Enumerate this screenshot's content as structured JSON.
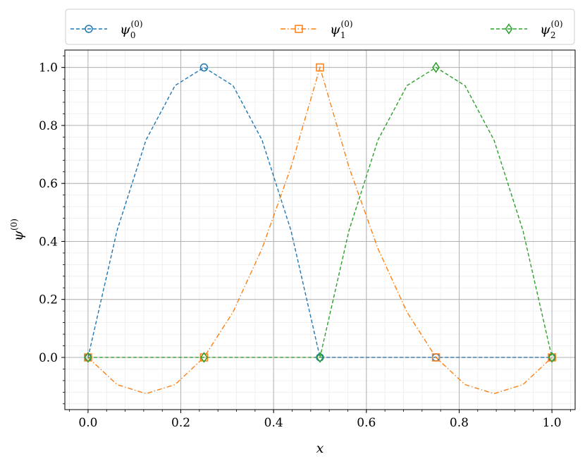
{
  "chart_data": {
    "type": "line",
    "xlabel": "x",
    "ylabel": "ψ",
    "ylabel_sup": "(0)",
    "xlim": [
      -0.05,
      1.05
    ],
    "ylim": [
      -0.18,
      1.06
    ],
    "xticks": [
      0.0,
      0.2,
      0.4,
      0.6,
      0.8,
      1.0
    ],
    "xtick_labels": [
      "0.0",
      "0.2",
      "0.4",
      "0.6",
      "0.8",
      "1.0"
    ],
    "yticks": [
      0.0,
      0.2,
      0.4,
      0.6,
      0.8,
      1.0
    ],
    "ytick_labels": [
      "0.0",
      "0.2",
      "0.4",
      "0.6",
      "0.8",
      "1.0"
    ],
    "grid": true,
    "minor_grid": true,
    "legend_position": "top, above plot, 3 columns",
    "series": [
      {
        "label_base": "ψ",
        "label_sub": "0",
        "label_sup": "(0)",
        "color": "#1f77b4",
        "linestyle": "dashed",
        "marker": "circle",
        "marker_x": [
          0.0,
          0.25,
          0.5,
          0.75,
          1.0
        ],
        "marker_y": [
          0.0,
          1.0,
          0.0,
          0.0,
          0.0
        ],
        "curve_x": [
          0.0,
          0.0625,
          0.125,
          0.1875,
          0.25,
          0.3125,
          0.375,
          0.4375,
          0.5,
          0.75,
          1.0
        ],
        "curve_y": [
          0.0,
          0.4375,
          0.75,
          0.9375,
          1.0,
          0.9375,
          0.75,
          0.4375,
          0.0,
          0.0,
          0.0
        ]
      },
      {
        "label_base": "ψ",
        "label_sub": "1",
        "label_sup": "(0)",
        "color": "#ff7f0e",
        "linestyle": "dashdot",
        "marker": "square",
        "marker_x": [
          0.0,
          0.25,
          0.5,
          0.75,
          1.0
        ],
        "marker_y": [
          0.0,
          0.0,
          1.0,
          0.0,
          0.0
        ],
        "curve_x": [
          0.0,
          0.0625,
          0.125,
          0.1875,
          0.25,
          0.3125,
          0.375,
          0.4375,
          0.5,
          0.5625,
          0.625,
          0.6875,
          0.75,
          0.8125,
          0.875,
          0.9375,
          1.0
        ],
        "curve_y": [
          0.0,
          -0.09375,
          -0.125,
          -0.09375,
          0.0,
          0.15625,
          0.375,
          0.65625,
          1.0,
          0.65625,
          0.375,
          0.15625,
          0.0,
          -0.09375,
          -0.125,
          -0.09375,
          0.0
        ]
      },
      {
        "label_base": "ψ",
        "label_sub": "2",
        "label_sup": "(0)",
        "color": "#2ca02c",
        "linestyle": "dashed",
        "marker": "diamond",
        "marker_x": [
          0.0,
          0.25,
          0.5,
          0.75,
          1.0
        ],
        "marker_y": [
          0.0,
          0.0,
          0.0,
          1.0,
          0.0
        ],
        "curve_x": [
          0.0,
          0.25,
          0.5,
          0.5625,
          0.625,
          0.6875,
          0.75,
          0.8125,
          0.875,
          0.9375,
          1.0
        ],
        "curve_y": [
          0.0,
          0.0,
          0.0,
          0.4375,
          0.75,
          0.9375,
          1.0,
          0.9375,
          0.75,
          0.4375,
          0.0
        ]
      }
    ]
  }
}
